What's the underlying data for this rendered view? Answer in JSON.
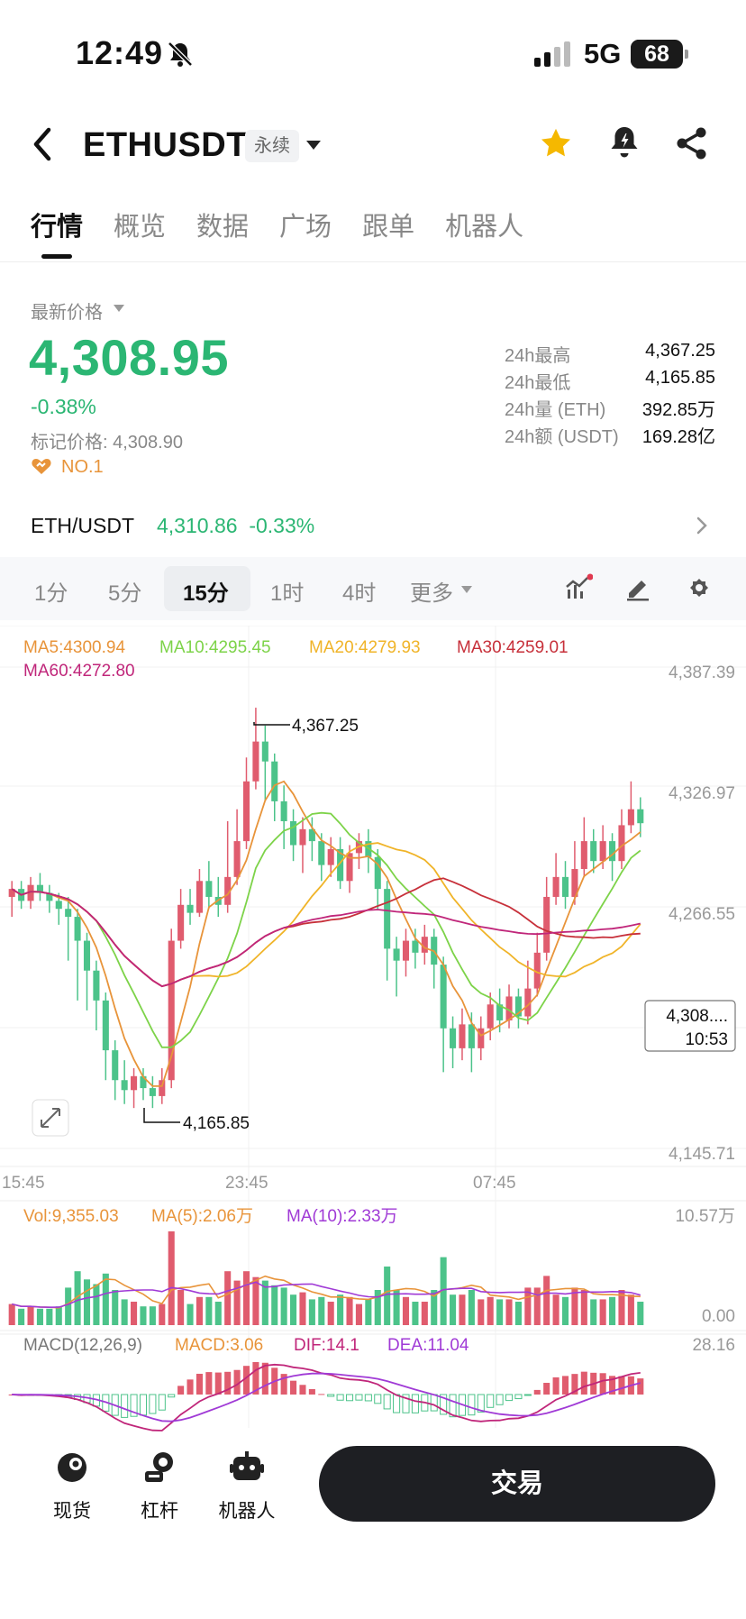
{
  "status": {
    "time": "12:49",
    "network": "5G",
    "battery": "68",
    "battery_level_percent": 68
  },
  "header": {
    "symbol": "ETHUSDT",
    "contract_badge": "永续"
  },
  "tabs": [
    "行情",
    "概览",
    "数据",
    "广场",
    "跟单",
    "机器人"
  ],
  "price": {
    "label": "最新价格",
    "last": "4,308.95",
    "change_pct": "-0.38%",
    "mark_price": "标记价格: 4,308.90",
    "rank": "NO.1"
  },
  "stats": [
    {
      "label": "24h最高",
      "value": "4,367.25"
    },
    {
      "label": "24h最低",
      "value": "4,165.85"
    },
    {
      "label": "24h量 (ETH)",
      "value": "392.85万"
    },
    {
      "label": "24h额 (USDT)",
      "value": "169.28亿"
    }
  ],
  "spot_pair": {
    "name": "ETH/USDT",
    "price": "4,310.86",
    "change": "-0.33%"
  },
  "timeframes": [
    "1分",
    "5分",
    "15分",
    "1时",
    "4时",
    "更多"
  ],
  "active_timeframe": "15分",
  "colors": {
    "up": "#e05c6e",
    "down": "#4cc38a",
    "green_text": "#2bb673",
    "ma5": "#e8943a",
    "ma10": "#7dd349",
    "ma20": "#f0b429",
    "ma30": "#c7303a",
    "ma60": "#c0267a"
  },
  "chart_data": {
    "type": "candlestick",
    "legend": {
      "ma5": "MA5:4300.94",
      "ma10": "MA10:4295.45",
      "ma20": "MA20:4279.93",
      "ma30": "MA30:4259.01",
      "ma60": "MA60:4272.80"
    },
    "y_ticks": [
      "4,387.39",
      "4,326.97",
      "4,266.55",
      "4,145.71"
    ],
    "ylim": [
      4145.71,
      4387.39
    ],
    "x_ticks": [
      "15:45",
      "23:45",
      "07:45"
    ],
    "high_marker": "4,367.25",
    "low_marker": "4,165.85",
    "current_price_tag": "4,308....",
    "countdown": "10:53",
    "candles": [
      {
        "o": 4272,
        "c": 4276,
        "h": 4280,
        "l": 4262
      },
      {
        "o": 4276,
        "c": 4270,
        "h": 4280,
        "l": 4266
      },
      {
        "o": 4270,
        "c": 4278,
        "h": 4282,
        "l": 4266
      },
      {
        "o": 4278,
        "c": 4274,
        "h": 4284,
        "l": 4270
      },
      {
        "o": 4274,
        "c": 4270,
        "h": 4278,
        "l": 4264
      },
      {
        "o": 4270,
        "c": 4266,
        "h": 4274,
        "l": 4258
      },
      {
        "o": 4266,
        "c": 4262,
        "h": 4272,
        "l": 4240
      },
      {
        "o": 4262,
        "c": 4250,
        "h": 4266,
        "l": 4220
      },
      {
        "o": 4250,
        "c": 4235,
        "h": 4254,
        "l": 4215
      },
      {
        "o": 4235,
        "c": 4220,
        "h": 4240,
        "l": 4205
      },
      {
        "o": 4220,
        "c": 4195,
        "h": 4224,
        "l": 4180
      },
      {
        "o": 4195,
        "c": 4180,
        "h": 4200,
        "l": 4170
      },
      {
        "o": 4180,
        "c": 4175,
        "h": 4190,
        "l": 4168
      },
      {
        "o": 4175,
        "c": 4182,
        "h": 4186,
        "l": 4166
      },
      {
        "o": 4182,
        "c": 4176,
        "h": 4186,
        "l": 4170
      },
      {
        "o": 4176,
        "c": 4172,
        "h": 4182,
        "l": 4166
      },
      {
        "o": 4172,
        "c": 4180,
        "h": 4186,
        "l": 4168
      },
      {
        "o": 4180,
        "c": 4250,
        "h": 4256,
        "l": 4176
      },
      {
        "o": 4250,
        "c": 4268,
        "h": 4276,
        "l": 4246
      },
      {
        "o": 4268,
        "c": 4264,
        "h": 4276,
        "l": 4258
      },
      {
        "o": 4264,
        "c": 4280,
        "h": 4286,
        "l": 4262
      },
      {
        "o": 4280,
        "c": 4272,
        "h": 4290,
        "l": 4266
      },
      {
        "o": 4272,
        "c": 4268,
        "h": 4282,
        "l": 4262
      },
      {
        "o": 4268,
        "c": 4282,
        "h": 4310,
        "l": 4264
      },
      {
        "o": 4282,
        "c": 4300,
        "h": 4316,
        "l": 4278
      },
      {
        "o": 4300,
        "c": 4330,
        "h": 4342,
        "l": 4296
      },
      {
        "o": 4330,
        "c": 4350,
        "h": 4367,
        "l": 4326
      },
      {
        "o": 4350,
        "c": 4340,
        "h": 4358,
        "l": 4320
      },
      {
        "o": 4340,
        "c": 4320,
        "h": 4344,
        "l": 4310
      },
      {
        "o": 4320,
        "c": 4310,
        "h": 4328,
        "l": 4296
      },
      {
        "o": 4310,
        "c": 4298,
        "h": 4316,
        "l": 4290
      },
      {
        "o": 4298,
        "c": 4306,
        "h": 4312,
        "l": 4284
      },
      {
        "o": 4306,
        "c": 4300,
        "h": 4312,
        "l": 4290
      },
      {
        "o": 4300,
        "c": 4288,
        "h": 4304,
        "l": 4280
      },
      {
        "o": 4288,
        "c": 4296,
        "h": 4302,
        "l": 4282
      },
      {
        "o": 4296,
        "c": 4280,
        "h": 4302,
        "l": 4276
      },
      {
        "o": 4280,
        "c": 4294,
        "h": 4298,
        "l": 4274
      },
      {
        "o": 4294,
        "c": 4300,
        "h": 4304,
        "l": 4286
      },
      {
        "o": 4300,
        "c": 4292,
        "h": 4306,
        "l": 4284
      },
      {
        "o": 4292,
        "c": 4276,
        "h": 4296,
        "l": 4266
      },
      {
        "o": 4276,
        "c": 4246,
        "h": 4280,
        "l": 4230
      },
      {
        "o": 4246,
        "c": 4240,
        "h": 4252,
        "l": 4222
      },
      {
        "o": 4240,
        "c": 4250,
        "h": 4256,
        "l": 4232
      },
      {
        "o": 4250,
        "c": 4244,
        "h": 4256,
        "l": 4236
      },
      {
        "o": 4244,
        "c": 4252,
        "h": 4258,
        "l": 4238
      },
      {
        "o": 4252,
        "c": 4238,
        "h": 4256,
        "l": 4226
      },
      {
        "o": 4238,
        "c": 4206,
        "h": 4242,
        "l": 4184
      },
      {
        "o": 4206,
        "c": 4196,
        "h": 4212,
        "l": 4186
      },
      {
        "o": 4196,
        "c": 4208,
        "h": 4216,
        "l": 4190
      },
      {
        "o": 4208,
        "c": 4196,
        "h": 4214,
        "l": 4184
      },
      {
        "o": 4196,
        "c": 4206,
        "h": 4212,
        "l": 4190
      },
      {
        "o": 4206,
        "c": 4218,
        "h": 4224,
        "l": 4200
      },
      {
        "o": 4218,
        "c": 4210,
        "h": 4226,
        "l": 4204
      },
      {
        "o": 4210,
        "c": 4222,
        "h": 4228,
        "l": 4206
      },
      {
        "o": 4222,
        "c": 4212,
        "h": 4226,
        "l": 4206
      },
      {
        "o": 4212,
        "c": 4226,
        "h": 4240,
        "l": 4208
      },
      {
        "o": 4226,
        "c": 4244,
        "h": 4254,
        "l": 4222
      },
      {
        "o": 4244,
        "c": 4272,
        "h": 4282,
        "l": 4240
      },
      {
        "o": 4272,
        "c": 4282,
        "h": 4294,
        "l": 4268
      },
      {
        "o": 4282,
        "c": 4272,
        "h": 4290,
        "l": 4266
      },
      {
        "o": 4272,
        "c": 4286,
        "h": 4300,
        "l": 4268
      },
      {
        "o": 4286,
        "c": 4300,
        "h": 4312,
        "l": 4282
      },
      {
        "o": 4300,
        "c": 4290,
        "h": 4306,
        "l": 4284
      },
      {
        "o": 4290,
        "c": 4300,
        "h": 4308,
        "l": 4286
      },
      {
        "o": 4300,
        "c": 4290,
        "h": 4304,
        "l": 4280
      },
      {
        "o": 4290,
        "c": 4308,
        "h": 4316,
        "l": 4286
      },
      {
        "o": 4308,
        "c": 4316,
        "h": 4330,
        "l": 4304
      },
      {
        "o": 4316,
        "c": 4309,
        "h": 4322,
        "l": 4302
      }
    ]
  },
  "volume": {
    "vol_label": "Vol:9,355.03",
    "ma5_label": "MA(5):2.06万",
    "ma10_label": "MA(10):2.33万",
    "y_max": "10.57万",
    "y_min": "0.00"
  },
  "macd": {
    "label": "MACD(12,26,9)",
    "macd": "MACD:3.06",
    "dif": "DIF:14.1",
    "dea": "DEA:11.04",
    "y_max": "28.16"
  },
  "bottom_nav": [
    {
      "label": "现货",
      "icon": "spot-icon"
    },
    {
      "label": "杠杆",
      "icon": "margin-icon"
    },
    {
      "label": "机器人",
      "icon": "robot-icon"
    }
  ],
  "trade_button": "交易"
}
